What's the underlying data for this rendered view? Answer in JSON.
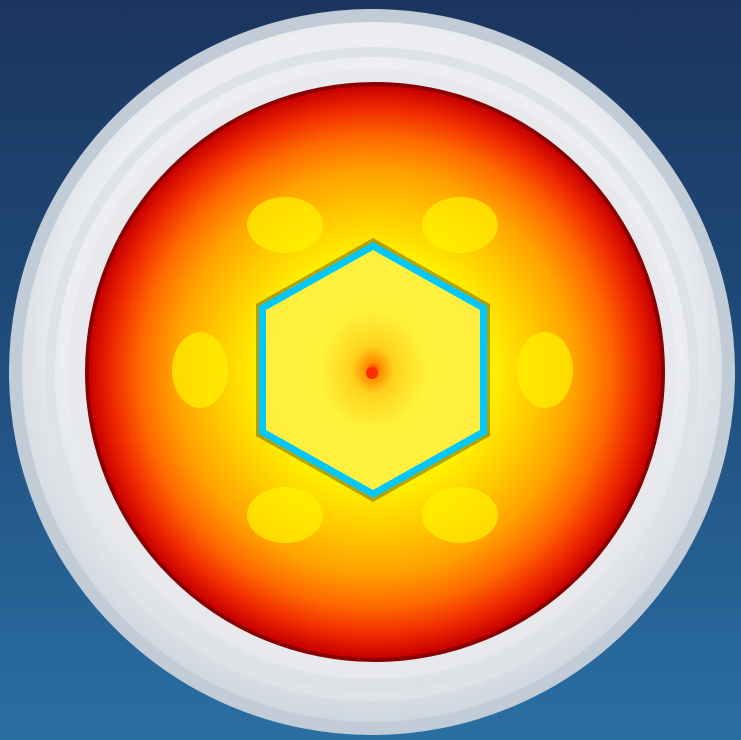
{
  "viewer": {
    "background_top": "#1b355e",
    "background_bottom": "#2a6fa3"
  },
  "model": {
    "shape": "round-part-with-hex-socket",
    "view": "top",
    "rim_color": "#e6e8ec",
    "rim_shadow_color": "#b9c3cf"
  },
  "contour_plot": {
    "colormap": [
      "#e00000",
      "#ff5a00",
      "#ff9900",
      "#ffcc00",
      "#ffff33",
      "#00d8ff",
      "#1a3cff"
    ],
    "hot_spot_color": "#ff2a00",
    "socket_edge_color": "#00c8ff"
  }
}
